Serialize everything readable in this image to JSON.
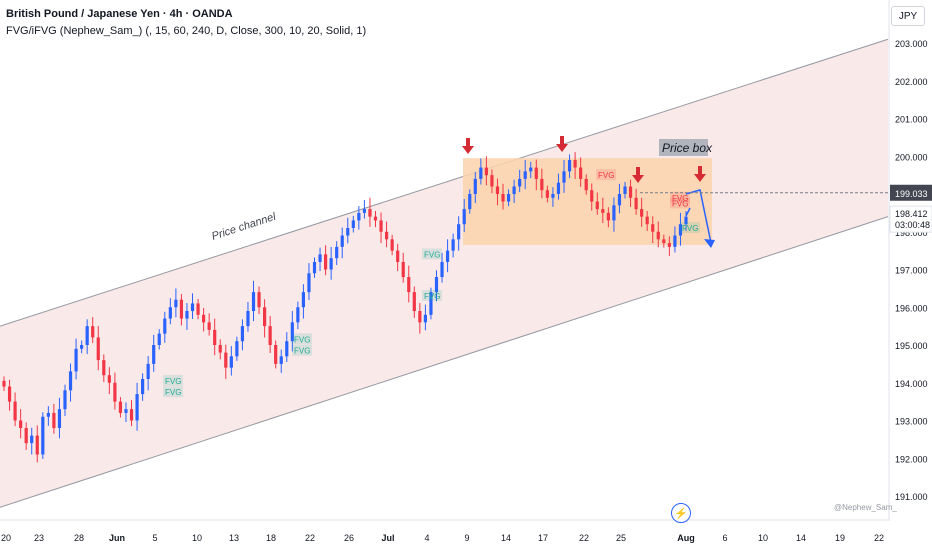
{
  "header": {
    "title": "British Pound / Japanese Yen · 4h · OANDA",
    "indicator": "FVG/iFVG (Nephew_Sam_) (, 15, 60, 240, D, Close, 300, 10, 20, Solid, 1)"
  },
  "currency_label": "JPY",
  "watermark": "@Nephew_Sam_",
  "bolt_icon": "lightning-icon",
  "colors": {
    "up": "#2962ff",
    "down": "#f23645",
    "channel_fill": "#f9e3e3",
    "box_fill": "#fbd4ad",
    "fvg_bull": "#22ab94",
    "fvg_bear": "#f23645",
    "arrow": "#d42b35"
  },
  "chart_data": {
    "type": "candlestick",
    "symbol": "GBPJPY",
    "timeframe": "4h",
    "ylim": [
      190.7,
      203.5
    ],
    "y_ticks": [
      "203.000",
      "202.000",
      "201.000",
      "200.000",
      "199.000",
      "198.000",
      "197.000",
      "196.000",
      "195.000",
      "194.000",
      "193.000",
      "192.000",
      "191.000"
    ],
    "x_ticks": [
      "20",
      "23",
      "28",
      "Jun",
      "5",
      "10",
      "13",
      "18",
      "22",
      "26",
      "Jul",
      "4",
      "9",
      "14",
      "17",
      "22",
      "25",
      "Aug",
      "6",
      "10",
      "14",
      "19",
      "22"
    ],
    "price_marks": {
      "horizontal_level": "199.033",
      "last_price": "198.412",
      "countdown": "03:00:48"
    },
    "annotations": {
      "channel_label": "Price channel",
      "box_label": "Price box",
      "fvg_label": "FVG"
    },
    "channel": {
      "upper": [
        {
          "x": "20",
          "y": 195.5
        },
        {
          "x": "22",
          "y": 203.1
        }
      ],
      "lower": [
        {
          "x": "20",
          "y": 190.7
        },
        {
          "x": "22",
          "y": 198.4
        }
      ]
    },
    "price_box": {
      "x_start": "9",
      "x_end": "Aug",
      "top": 199.95,
      "bottom": 197.65
    },
    "candles_close": [
      193.9,
      193.5,
      193.0,
      192.8,
      192.4,
      192.6,
      192.1,
      193.1,
      193.2,
      192.8,
      193.3,
      193.8,
      194.3,
      194.9,
      195.0,
      195.5,
      195.2,
      194.6,
      194.2,
      194.0,
      193.5,
      193.2,
      193.3,
      193.0,
      193.7,
      194.1,
      194.5,
      195.0,
      195.3,
      195.7,
      196.0,
      196.2,
      195.7,
      195.9,
      196.1,
      195.8,
      195.6,
      195.4,
      195.0,
      194.8,
      194.4,
      194.7,
      195.1,
      195.5,
      195.9,
      196.4,
      196.0,
      195.5,
      195.0,
      194.5,
      194.7,
      195.1,
      195.6,
      196.0,
      196.4,
      196.9,
      197.2,
      197.4,
      197.0,
      197.3,
      197.6,
      197.9,
      198.1,
      198.3,
      198.5,
      198.6,
      198.4,
      198.3,
      198.0,
      197.8,
      197.5,
      197.2,
      196.8,
      196.4,
      195.9,
      195.6,
      195.8,
      196.4,
      196.8,
      197.2,
      197.5,
      197.8,
      198.2,
      198.6,
      199.0,
      199.4,
      199.7,
      199.5,
      199.2,
      199.0,
      198.8,
      199.0,
      199.2,
      199.4,
      199.6,
      199.7,
      199.4,
      199.1,
      198.9,
      199.0,
      199.3,
      199.6,
      199.9,
      199.7,
      199.4,
      199.1,
      198.8,
      198.6,
      198.5,
      198.3,
      198.7,
      199.0,
      199.2,
      198.9,
      198.6,
      198.4,
      198.2,
      198.0,
      197.8,
      197.7,
      197.6,
      197.9,
      198.2,
      198.4
    ]
  }
}
